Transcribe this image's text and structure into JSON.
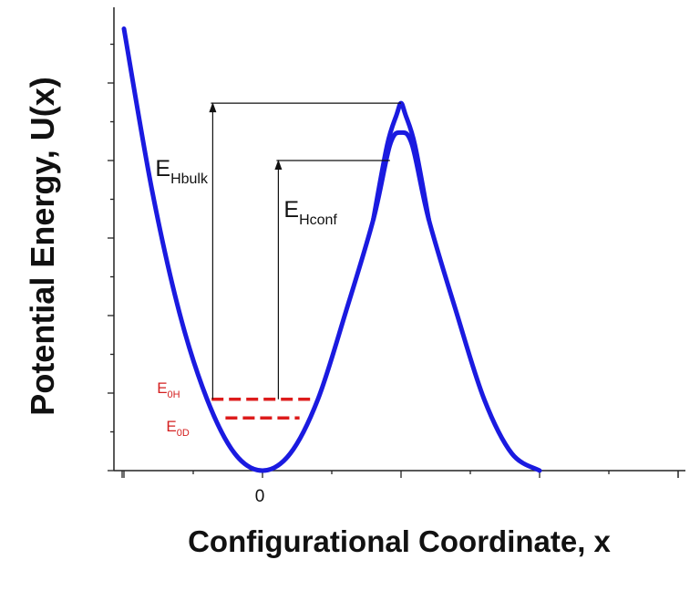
{
  "chart_data": {
    "type": "line",
    "xlabel": "Configurational Coordinate, x",
    "ylabel": "Potential Energy, U(x)",
    "x_tick_labels": [
      {
        "x": 0,
        "label": "0"
      }
    ],
    "xlim": [
      -1.02,
      2.02
    ],
    "ylim": [
      0,
      3.0
    ],
    "series": [
      {
        "x": [
          -1.0,
          -0.8,
          -0.6,
          -0.4,
          -0.2,
          0.0,
          0.2,
          0.4,
          0.6,
          0.8,
          0.92,
          1.0,
          1.08,
          1.2,
          1.4,
          1.6,
          1.8,
          2.0
        ],
        "y": [
          2.85,
          1.82,
          1.02,
          0.46,
          0.11,
          0.0,
          0.11,
          0.46,
          1.02,
          1.62,
          2.1,
          2.18,
          2.1,
          1.62,
          1.02,
          0.46,
          0.11,
          0.0
        ],
        "color": "#1a1ae0"
      },
      {
        "x": [
          0.8,
          0.9,
          0.97,
          1.0,
          1.03,
          1.1,
          1.2
        ],
        "y": [
          1.62,
          2.1,
          2.3,
          2.37,
          2.3,
          2.1,
          1.62
        ],
        "color": "#1a1ae0"
      }
    ],
    "levels": [
      {
        "label": "E",
        "sub": "0H",
        "y": 0.46,
        "x_start": -0.4,
        "x_end": 0.4,
        "color": "#dd1c1c"
      },
      {
        "label": "E",
        "sub": "0D",
        "y": 0.34,
        "x_start": -0.3,
        "x_end": 0.3,
        "color": "#dd1c1c"
      }
    ],
    "annotations": [
      {
        "label": "E",
        "sub": "Hbulk",
        "x": -0.3,
        "y_from": 0.46,
        "y_to": 2.37
      },
      {
        "label": "E",
        "sub": "Hconf",
        "x": 0.2,
        "y_from": 0.46,
        "y_to": 2.0
      }
    ]
  }
}
